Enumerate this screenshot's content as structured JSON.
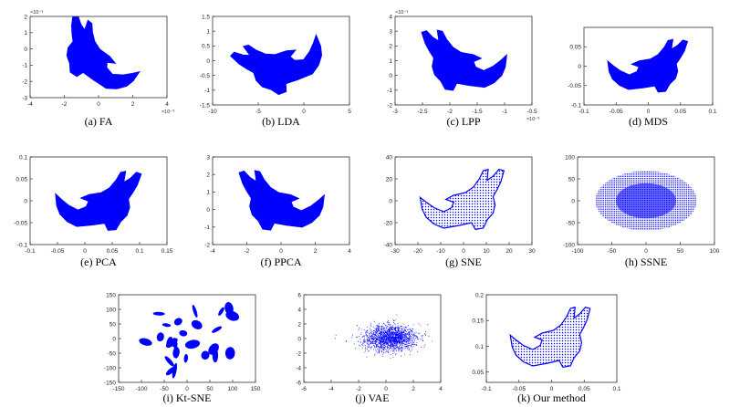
{
  "figure": {
    "point_color": "#0000ff",
    "axis_color": "#333333"
  },
  "chart_data": [
    {
      "id": "a",
      "type": "scatter",
      "caption": "(a)  FA",
      "point_cloud": "bunny",
      "xlim": [
        -4,
        4
      ],
      "ylim": [
        -3,
        2
      ],
      "xticks": [
        -4,
        -2,
        0,
        2,
        4
      ],
      "yticks": [
        -3,
        -2,
        -1,
        0,
        1,
        2
      ],
      "xticklabels": [
        "-4",
        "-2",
        "0",
        "2",
        "4"
      ],
      "yticklabels": [
        "-3",
        "-2",
        "-1",
        "0",
        "1",
        "2"
      ],
      "xexp": "×10⁻³",
      "yexp": "×10⁻³"
    },
    {
      "id": "b",
      "type": "scatter",
      "caption": "(b)  LDA",
      "point_cloud": "bunny",
      "xlim": [
        -10,
        5
      ],
      "ylim": [
        -1.5,
        1.5
      ],
      "xticks": [
        -10,
        -5,
        0,
        5
      ],
      "yticks": [
        -1.5,
        -1,
        -0.5,
        0,
        0.5,
        1,
        1.5
      ],
      "xticklabels": [
        "-10",
        "-5",
        "0",
        "5"
      ],
      "yticklabels": [
        "-1.5",
        "-1",
        "-0.5",
        "0",
        "0.5",
        "1",
        "1.5"
      ],
      "xexp": "",
      "yexp": ""
    },
    {
      "id": "c",
      "type": "scatter",
      "caption": "(c)  LPP",
      "point_cloud": "bunny",
      "xlim": [
        -3,
        -0.5
      ],
      "ylim": [
        -2,
        4
      ],
      "xticks": [
        -3,
        -2.5,
        -2,
        -1.5,
        -1,
        -0.5
      ],
      "yticks": [
        -2,
        -1,
        0,
        1,
        2,
        3,
        4
      ],
      "xticklabels": [
        "-3",
        "-2.5",
        "-2",
        "-1.5",
        "-1",
        "-0.5"
      ],
      "yticklabels": [
        "-2",
        "-1",
        "0",
        "1",
        "2",
        "3",
        "4"
      ],
      "xexp": "×10⁻³",
      "yexp": "×10⁻³"
    },
    {
      "id": "d",
      "type": "scatter",
      "caption": "(d)  MDS",
      "point_cloud": "bunny",
      "xlim": [
        -0.1,
        0.1
      ],
      "ylim": [
        -0.1,
        0.1
      ],
      "xticks": [
        -0.1,
        -0.05,
        0,
        0.05,
        0.1
      ],
      "yticks": [
        -0.1,
        -0.05,
        0,
        0.05
      ],
      "xticklabels": [
        "-0.1",
        "-0.05",
        "0",
        "0.05",
        "0.1"
      ],
      "yticklabels": [
        "-0.1",
        "-0.05",
        "0",
        "0.05"
      ],
      "xexp": "",
      "yexp": ""
    },
    {
      "id": "e",
      "type": "scatter",
      "caption": "(e)  PCA",
      "point_cloud": "bunny",
      "xlim": [
        -0.1,
        0.15
      ],
      "ylim": [
        -0.1,
        0.1
      ],
      "xticks": [
        -0.1,
        -0.05,
        0,
        0.05,
        0.1,
        0.15
      ],
      "yticks": [
        -0.1,
        -0.05,
        0,
        0.05,
        0.1
      ],
      "xticklabels": [
        "-0.1",
        "-0.05",
        "0",
        "0.05",
        "0.1",
        "0.15"
      ],
      "yticklabels": [
        "-0.1",
        "-0.05",
        "0",
        "0.05",
        "0.1"
      ],
      "xexp": "",
      "yexp": ""
    },
    {
      "id": "f",
      "type": "scatter",
      "caption": "(f)  PPCA",
      "point_cloud": "bunny",
      "xlim": [
        -4,
        4
      ],
      "ylim": [
        -2,
        3
      ],
      "xticks": [
        -4,
        -2,
        0,
        2,
        4
      ],
      "yticks": [
        -2,
        -1,
        0,
        1,
        2,
        3
      ],
      "xticklabels": [
        "-4",
        "-2",
        "0",
        "2",
        "4"
      ],
      "yticklabels": [
        "-2",
        "-1",
        "0",
        "1",
        "2",
        "3"
      ],
      "xexp": "",
      "yexp": ""
    },
    {
      "id": "g",
      "type": "scatter",
      "caption": "(g)  SNE",
      "point_cloud": "bunny",
      "xlim": [
        -30,
        30
      ],
      "ylim": [
        -40,
        40
      ],
      "xticks": [
        -30,
        -20,
        -10,
        0,
        10,
        20,
        30
      ],
      "yticks": [
        -40,
        -20,
        0,
        20,
        40
      ],
      "xticklabels": [
        "-30",
        "-20",
        "-10",
        "0",
        "10",
        "20",
        "30"
      ],
      "yticklabels": [
        "-40",
        "-20",
        "0",
        "20",
        "40"
      ],
      "xexp": "",
      "yexp": ""
    },
    {
      "id": "h",
      "type": "scatter",
      "caption": "(h)  SSNE",
      "point_cloud": "ellipse",
      "xlim": [
        -100,
        100
      ],
      "ylim": [
        -100,
        100
      ],
      "xticks": [
        -100,
        -50,
        0,
        50,
        100
      ],
      "yticks": [
        -100,
        -50,
        0,
        50,
        100
      ],
      "xticklabels": [
        "-100",
        "-50",
        "0",
        "50",
        "100"
      ],
      "yticklabels": [
        "-100",
        "-50",
        "0",
        "50",
        "100"
      ],
      "xexp": "",
      "yexp": ""
    },
    {
      "id": "i",
      "type": "scatter",
      "caption": "(i)  Kt-SNE",
      "point_cloud": "clusters",
      "xlim": [
        -150,
        150
      ],
      "ylim": [
        -150,
        150
      ],
      "xticks": [
        -150,
        -100,
        -50,
        0,
        50,
        100,
        150
      ],
      "yticks": [
        -150,
        -100,
        -50,
        0,
        50,
        100,
        150
      ],
      "xticklabels": [
        "-150",
        "-100",
        "-50",
        "0",
        "50",
        "100",
        "150"
      ],
      "yticklabels": [
        "-150",
        "-100",
        "-50",
        "0",
        "50",
        "100",
        "150"
      ],
      "xexp": "",
      "yexp": ""
    },
    {
      "id": "j",
      "type": "scatter",
      "caption": "(j)  VAE",
      "point_cloud": "gaussian",
      "xlim": [
        -6,
        4
      ],
      "ylim": [
        -6,
        6
      ],
      "xticks": [
        -6,
        -4,
        -2,
        0,
        2,
        4
      ],
      "yticks": [
        -6,
        -4,
        -2,
        0,
        2,
        4,
        6
      ],
      "xticklabels": [
        "-6",
        "-4",
        "-2",
        "0",
        "2",
        "4"
      ],
      "yticklabels": [
        "-6",
        "-4",
        "-2",
        "0",
        "2",
        "4",
        "6"
      ],
      "xexp": "",
      "yexp": ""
    },
    {
      "id": "k",
      "type": "scatter",
      "caption": "(k)  Our method",
      "point_cloud": "bunny",
      "xlim": [
        -0.1,
        0.1
      ],
      "ylim": [
        0.03,
        0.2
      ],
      "xticks": [
        -0.1,
        -0.05,
        0,
        0.05,
        0.1
      ],
      "yticks": [
        0.05,
        0.1,
        0.15,
        0.2
      ],
      "xticklabels": [
        "-0.1",
        "-0.05",
        "0",
        "0.05",
        "0.1"
      ],
      "yticklabels": [
        "0.05",
        "0.1",
        "0.15",
        "0.2"
      ],
      "xexp": "",
      "yexp": ""
    }
  ]
}
